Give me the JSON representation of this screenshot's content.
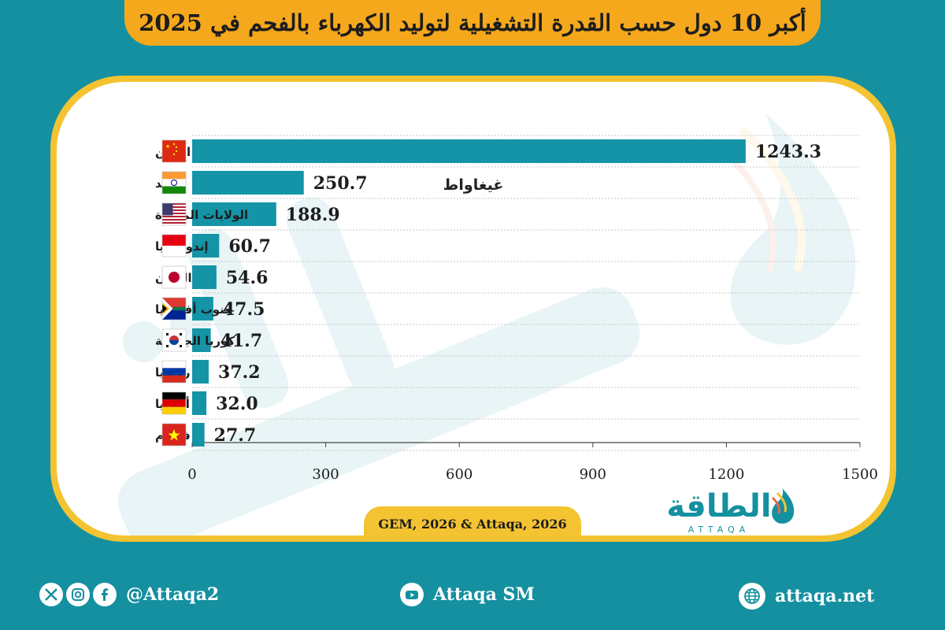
{
  "title": "أكبر 10 دول حسب القدرة التشغيلية لتوليد الكهرباء بالفحم في 2025",
  "source": "GEM, 2026 & Attaqa, 2026",
  "brand": {
    "arabic": "الطاقة",
    "latin": "ATTAQA"
  },
  "footer": {
    "social_handle": "@Attaqa2",
    "youtube": "Attaqa SM",
    "website": "attaqa.net",
    "icons": [
      "x-icon",
      "instagram-icon",
      "facebook-icon",
      "youtube-icon",
      "globe-icon"
    ]
  },
  "colors": {
    "background": "#1490a0",
    "bar": "#1494a6",
    "accent": "#f4c332",
    "title_banner": "#f5a81c"
  },
  "chart_data": {
    "type": "bar",
    "orientation": "horizontal",
    "unit_label": "غيغاواط",
    "categories": [
      "الصين",
      "الهند",
      "الولايات المتحدة",
      "إندونيسيا",
      "اليابان",
      "جنوب أفريقيا",
      "كوريا الجنوبية",
      "روسيا",
      "ألمانيا",
      "فيتنام"
    ],
    "flags": [
      "china",
      "india",
      "usa",
      "indonesia",
      "japan",
      "south-africa",
      "south-korea",
      "russia",
      "germany",
      "vietnam"
    ],
    "values": [
      1243.3,
      250.7,
      188.9,
      60.7,
      54.6,
      47.5,
      41.7,
      37.2,
      32.0,
      27.7
    ],
    "value_labels": [
      "1243.3",
      "250.7",
      "188.9",
      "60.7",
      "54.6",
      "47.5",
      "41.7",
      "37.2",
      "32.0",
      "27.7"
    ],
    "xlim": [
      0,
      1500
    ],
    "ticks": [
      "0",
      "300",
      "600",
      "900",
      "1200",
      "1500"
    ],
    "grid": true,
    "legend": "none"
  }
}
